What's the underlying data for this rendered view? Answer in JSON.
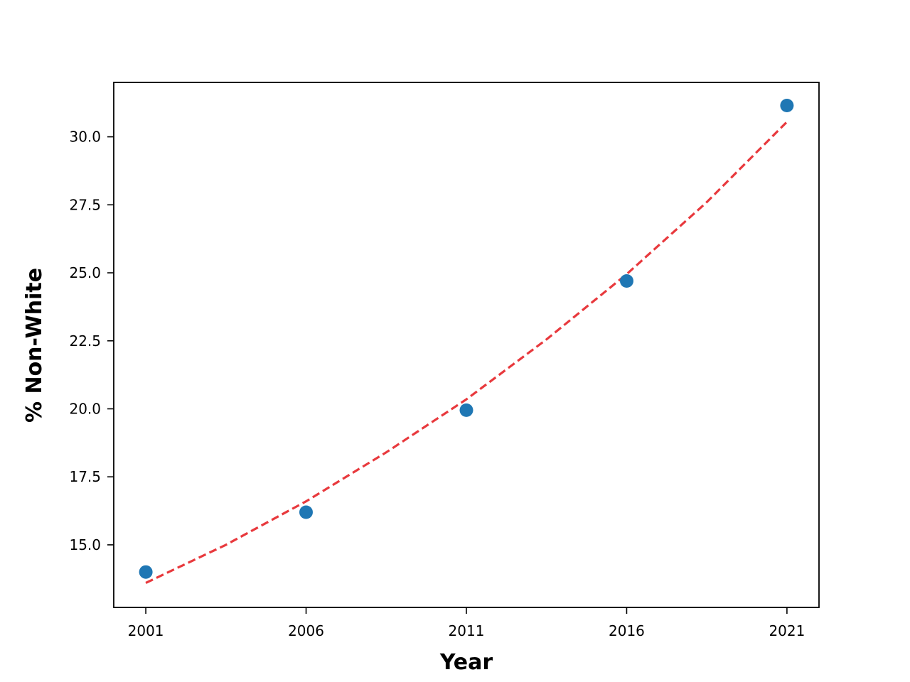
{
  "chart_data": {
    "type": "scatter",
    "title": "",
    "xlabel": "Year",
    "ylabel": "% Non-White",
    "x": [
      2001,
      2006,
      2011,
      2016,
      2021
    ],
    "xticks": [
      "2001",
      "2006",
      "2011",
      "2016",
      "2021"
    ],
    "yticks": [
      "15.0",
      "17.5",
      "20.0",
      "22.5",
      "25.0",
      "27.5",
      "30.0"
    ],
    "xlim": [
      2000,
      2022
    ],
    "ylim": [
      12.7,
      32.0
    ],
    "grid": false,
    "legend": "none",
    "series": [
      {
        "kind": "scatter",
        "color": "#1f77b4",
        "x": [
          2001,
          2006,
          2011,
          2016,
          2021
        ],
        "y": [
          14.0,
          16.2,
          19.95,
          24.7,
          31.15
        ]
      },
      {
        "kind": "line",
        "style": "dashed",
        "color": "#e8393d",
        "fit": "exponential",
        "x": [
          2001,
          2003.5,
          2006,
          2008.5,
          2011,
          2013.5,
          2016,
          2018.5,
          2021
        ],
        "y": [
          13.6,
          15.0,
          16.6,
          18.4,
          20.35,
          22.55,
          24.95,
          27.6,
          30.55
        ]
      }
    ]
  }
}
